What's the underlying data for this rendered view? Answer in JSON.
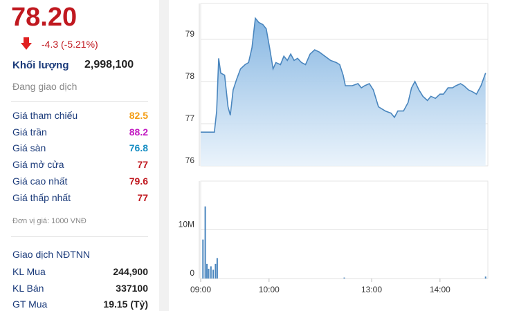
{
  "quote": {
    "price": "78.20",
    "change": "-4.3 (-5.21%)",
    "volume_label": "Khối lượng",
    "volume": "2,998,100",
    "status": "Đang giao dịch",
    "rows": [
      {
        "label": "Giá tham chiếu",
        "value": "82.5",
        "color": "#f39c12"
      },
      {
        "label": "Giá trần",
        "value": "88.2",
        "color": "#c21bc2"
      },
      {
        "label": "Giá sàn",
        "value": "76.8",
        "color": "#1a8fc4"
      },
      {
        "label": "Giá mở cửa",
        "value": "77",
        "color": "#c0181f"
      },
      {
        "label": "Giá cao nhất",
        "value": "79.6",
        "color": "#c0181f"
      },
      {
        "label": "Giá thấp nhất",
        "value": "77",
        "color": "#c0181f"
      }
    ],
    "unit_note": "Đơn vị giá: 1000 VNĐ",
    "foreign": {
      "title": "Giao dịch NĐTNN",
      "rows": [
        {
          "label": "KL Mua",
          "value": "244,900"
        },
        {
          "label": "KL Bán",
          "value": "337100"
        },
        {
          "label": "GT Mua",
          "value": "19.15 (Tỷ)"
        }
      ]
    }
  },
  "chart_data": [
    {
      "type": "area",
      "color": "#4a86be",
      "x": [
        0,
        12,
        14,
        15.8,
        17.6,
        21,
        24,
        26,
        28.5,
        31.5,
        35,
        39,
        42,
        45,
        48,
        51,
        54.5,
        57.5,
        60.5,
        63.5,
        66,
        70,
        73,
        76,
        79,
        82,
        85,
        88.5,
        92,
        96,
        100,
        104,
        109,
        114,
        119,
        122,
        125,
        127,
        133,
        138,
        141,
        144,
        148,
        151.5,
        156,
        162,
        167,
        170,
        173,
        178,
        182,
        185,
        188,
        191.5,
        195,
        199,
        202,
        206,
        210,
        213,
        217,
        221,
        224,
        228,
        231,
        235,
        239,
        242,
        246,
        250
      ],
      "values": [
        76.8,
        76.8,
        77.3,
        78.55,
        78.2,
        78.15,
        77.4,
        77.2,
        77.8,
        78.05,
        78.3,
        78.4,
        78.45,
        78.8,
        79.5,
        79.4,
        79.35,
        79.25,
        78.8,
        78.3,
        78.45,
        78.4,
        78.6,
        78.5,
        78.65,
        78.5,
        78.55,
        78.45,
        78.4,
        78.65,
        78.75,
        78.7,
        78.6,
        78.5,
        78.45,
        78.4,
        78.15,
        77.9,
        77.9,
        77.95,
        77.85,
        77.9,
        77.95,
        77.8,
        77.4,
        77.3,
        77.25,
        77.15,
        77.3,
        77.3,
        77.5,
        77.85,
        78.0,
        77.8,
        77.65,
        77.55,
        77.65,
        77.6,
        77.7,
        77.7,
        77.85,
        77.85,
        77.9,
        77.95,
        77.9,
        77.8,
        77.75,
        77.7,
        77.9,
        78.2
      ],
      "xlim": [
        0,
        252
      ],
      "ylim": [
        76,
        79.85
      ],
      "yticks": [
        76,
        77,
        78,
        79
      ],
      "grid": true
    },
    {
      "type": "bar",
      "color": "#4a86be",
      "x": [
        2,
        4,
        5.5,
        7,
        9,
        11,
        13,
        14.5,
        126,
        250
      ],
      "values": [
        8000000,
        14800000,
        3000000,
        2000000,
        2500000,
        1800000,
        3000000,
        4200000,
        200000,
        400000
      ],
      "xlim": [
        0,
        252
      ],
      "ylim": [
        0,
        20000000
      ],
      "yticks": [
        0,
        {
          "value": 10000000,
          "label": "10M"
        }
      ],
      "xticks": [
        {
          "value": 0,
          "label": "09:00"
        },
        {
          "value": 60,
          "label": "10:00"
        },
        {
          "value": 150,
          "label": "13:00"
        },
        {
          "value": 210,
          "label": "14:00"
        }
      ],
      "grid": true
    }
  ]
}
